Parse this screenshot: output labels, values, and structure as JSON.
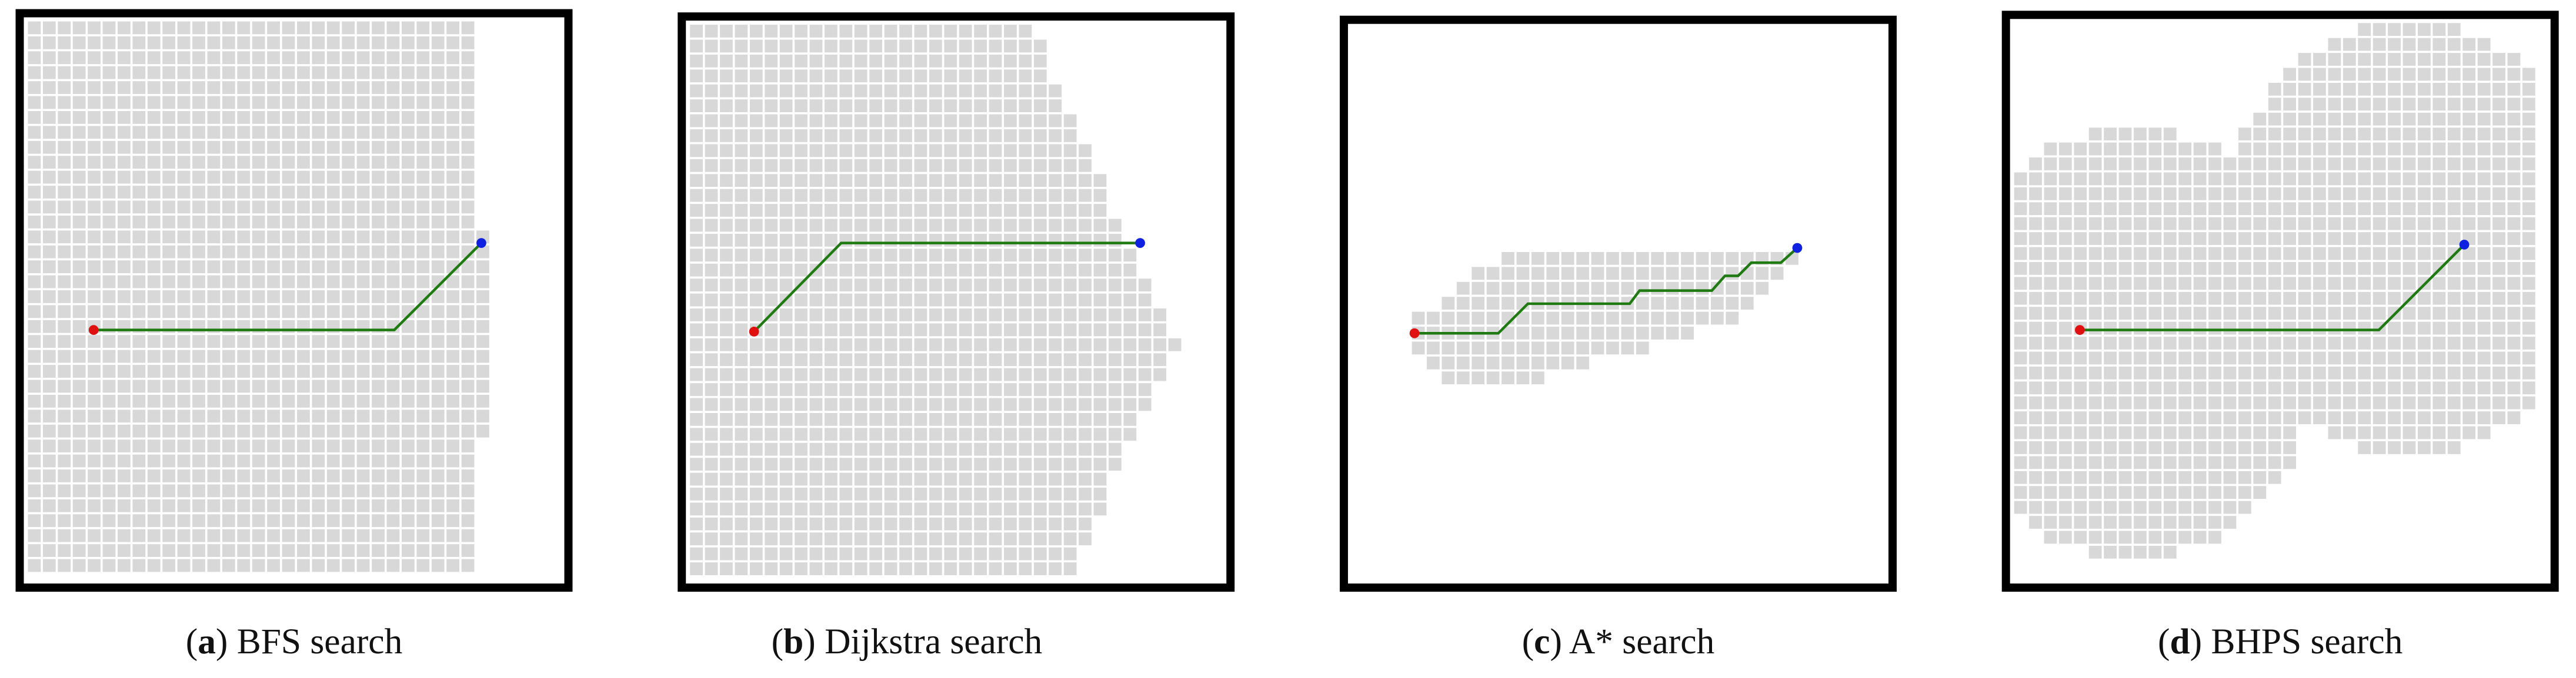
{
  "panels": [
    {
      "caption": [
        "(",
        "a",
        ") BFS search"
      ]
    },
    {
      "caption": [
        "(",
        "b",
        ") Dijkstra search"
      ]
    },
    {
      "caption": [
        "(",
        "c",
        ") A* search"
      ]
    },
    {
      "caption": [
        "(",
        "d",
        ") BHPS search"
      ]
    }
  ]
}
